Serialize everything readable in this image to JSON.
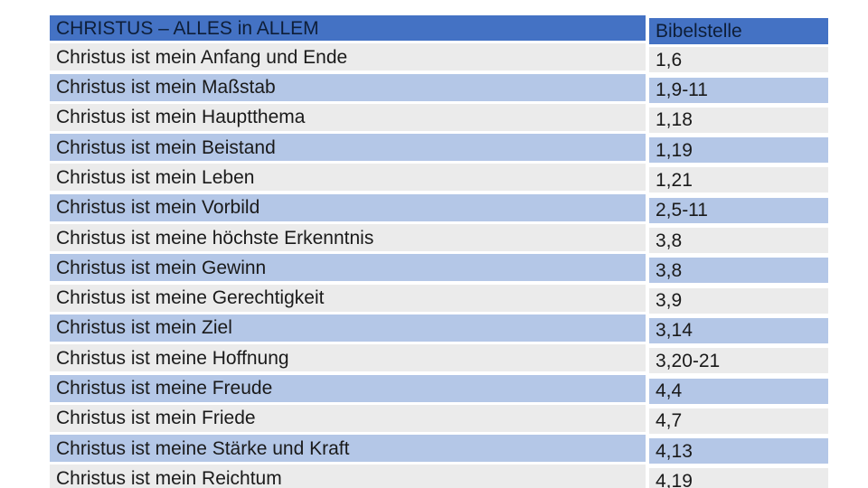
{
  "colors": {
    "page_bg": "#FFFFFF",
    "header_bg": "#4472C4",
    "band_blue": "#B4C7E7",
    "band_gray": "#EBEBEB",
    "header_text": "#0E1E38",
    "body_text": "#1A1A1A"
  },
  "left_table": {
    "header": "CHRISTUS – ALLES in ALLEM",
    "rows": [
      "Christus ist mein Anfang und Ende",
      "Christus ist mein Maßstab",
      "Christus ist mein Hauptthema",
      "Christus ist mein Beistand",
      "Christus ist mein Leben",
      "Christus ist mein Vorbild",
      "Christus ist meine höchste Erkenntnis",
      "Christus ist mein Gewinn",
      "Christus ist meine Gerechtigkeit",
      "Christus ist mein Ziel",
      "Christus ist meine Hoffnung",
      "Christus ist meine Freude",
      "Christus ist mein Friede",
      "Christus ist meine Stärke und Kraft",
      "Christus ist mein Reichtum"
    ]
  },
  "right_table": {
    "header": "Bibelstelle",
    "rows": [
      "1,6",
      "1,9-11",
      "1,18",
      "1,19",
      "1,21",
      "2,5-11",
      "3,8",
      "3,8",
      "3,9",
      "3,14",
      "3,20-21",
      "4,4",
      "4,7",
      "4,13",
      "4,19"
    ]
  }
}
